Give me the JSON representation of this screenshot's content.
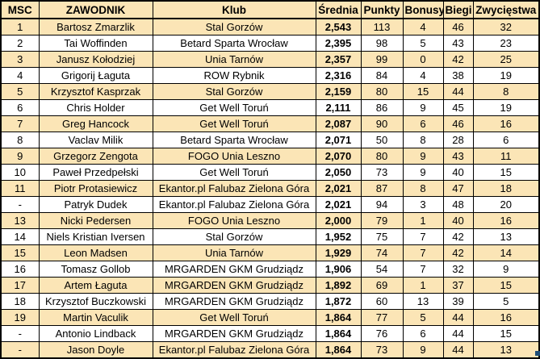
{
  "table": {
    "columns": [
      "MSC",
      "ZAWODNIK",
      "Klub",
      "Średnia",
      "Punkty",
      "Bonusy",
      "Biegi",
      "Zwycięstwa"
    ],
    "rows": [
      [
        "1",
        "Bartosz Zmarzlik",
        "Stal Gorzów",
        "2,543",
        "113",
        "4",
        "46",
        "32"
      ],
      [
        "2",
        "Tai Woffinden",
        "Betard Sparta Wrocław",
        "2,395",
        "98",
        "5",
        "43",
        "23"
      ],
      [
        "3",
        "Janusz Kołodziej",
        "Unia Tarnów",
        "2,357",
        "99",
        "0",
        "42",
        "25"
      ],
      [
        "4",
        "Grigorij Łaguta",
        "ROW Rybnik",
        "2,316",
        "84",
        "4",
        "38",
        "19"
      ],
      [
        "5",
        "Krzysztof Kasprzak",
        "Stal Gorzów",
        "2,159",
        "80",
        "15",
        "44",
        "8"
      ],
      [
        "6",
        "Chris Holder",
        "Get Well Toruń",
        "2,111",
        "86",
        "9",
        "45",
        "19"
      ],
      [
        "7",
        "Greg Hancock",
        "Get Well Toruń",
        "2,087",
        "90",
        "6",
        "46",
        "16"
      ],
      [
        "8",
        "Vaclav Milik",
        "Betard Sparta Wrocław",
        "2,071",
        "50",
        "8",
        "28",
        "6"
      ],
      [
        "9",
        "Grzegorz Zengota",
        "FOGO Unia Leszno",
        "2,070",
        "80",
        "9",
        "43",
        "11"
      ],
      [
        "10",
        "Paweł Przedpełski",
        "Get Well Toruń",
        "2,050",
        "73",
        "9",
        "40",
        "15"
      ],
      [
        "11",
        "Piotr Protasiewicz",
        "Ekantor.pl Falubaz Zielona Góra",
        "2,021",
        "87",
        "8",
        "47",
        "18"
      ],
      [
        "-",
        "Patryk Dudek",
        "Ekantor.pl Falubaz Zielona Góra",
        "2,021",
        "94",
        "3",
        "48",
        "20"
      ],
      [
        "13",
        "Nicki Pedersen",
        "FOGO Unia Leszno",
        "2,000",
        "79",
        "1",
        "40",
        "16"
      ],
      [
        "14",
        "Niels Kristian Iversen",
        "Stal Gorzów",
        "1,952",
        "75",
        "7",
        "42",
        "13"
      ],
      [
        "15",
        "Leon Madsen",
        "Unia Tarnów",
        "1,929",
        "74",
        "7",
        "42",
        "14"
      ],
      [
        "16",
        "Tomasz Gollob",
        "MRGARDEN GKM Grudziądz",
        "1,906",
        "54",
        "7",
        "32",
        "9"
      ],
      [
        "17",
        "Artem Łaguta",
        "MRGARDEN GKM Grudziądz",
        "1,892",
        "69",
        "1",
        "37",
        "15"
      ],
      [
        "18",
        "Krzysztof Buczkowski",
        "MRGARDEN GKM Grudziądz",
        "1,872",
        "60",
        "13",
        "39",
        "5"
      ],
      [
        "19",
        "Martin Vaculik",
        "Get Well Toruń",
        "1,864",
        "77",
        "5",
        "44",
        "16"
      ],
      [
        "-",
        "Antonio Lindback",
        "MRGARDEN GKM Grudziądz",
        "1,864",
        "76",
        "6",
        "44",
        "15"
      ],
      [
        "-",
        "Jason Doyle",
        "Ekantor.pl Falubaz Zielona Góra",
        "1,864",
        "73",
        "9",
        "44",
        "13"
      ]
    ]
  },
  "colors": {
    "row_alt_fill": "#fbe5b6",
    "header_fill": "#fbe5b6",
    "border": "#000000",
    "fill_handle": "#1f4e78"
  }
}
